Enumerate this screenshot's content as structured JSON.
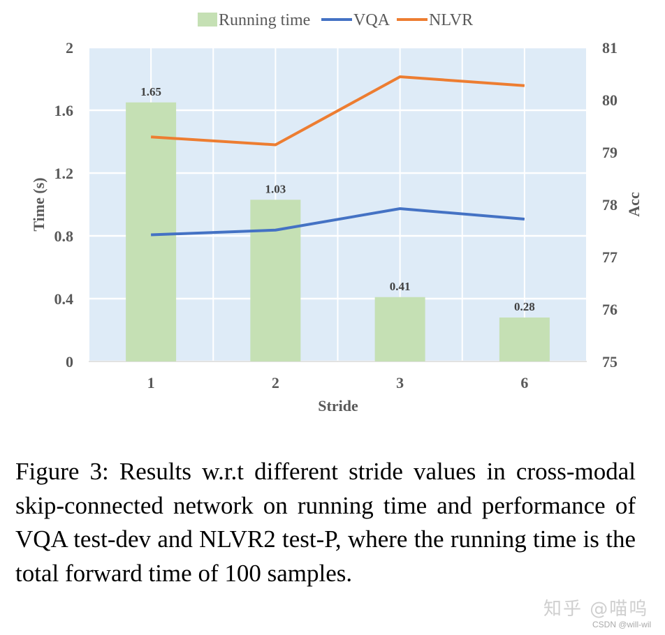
{
  "chart_data": {
    "type": "bar+line",
    "categories": [
      "1",
      "2",
      "3",
      "6"
    ],
    "xlabel": "Stride",
    "ylabel": "Time (s)",
    "y2label": "Acc",
    "ylim": [
      0,
      2
    ],
    "y_ticks": [
      "0",
      "0.4",
      "0.8",
      "1.2",
      "1.6",
      "2"
    ],
    "y2lim": [
      75,
      81
    ],
    "y2_ticks": [
      "75",
      "76",
      "77",
      "78",
      "79",
      "80",
      "81"
    ],
    "grid": true,
    "legend_position": "top",
    "series": [
      {
        "name": "Running time",
        "kind": "bar",
        "axis": "left",
        "values": [
          1.65,
          1.03,
          0.41,
          0.28
        ],
        "labels": [
          "1.65",
          "1.03",
          "0.41",
          "0.28"
        ],
        "color": "#c5e0b4"
      },
      {
        "name": "VQA",
        "kind": "line",
        "axis": "right",
        "values": [
          77.42,
          77.51,
          77.92,
          77.72
        ],
        "color": "#4472c4"
      },
      {
        "name": "NLVR",
        "kind": "line",
        "axis": "right",
        "values": [
          79.29,
          79.14,
          80.44,
          80.27
        ],
        "color": "#ed7d31"
      }
    ],
    "plot_background": "#deebf7"
  },
  "caption": "Figure 3: Results w.r.t different stride values in cross-modal skip-connected network on running time and performance of VQA test-dev and NLVR2 test-P, where the running time is the total forward time of 100 samples.",
  "watermark": {
    "main": "知乎 @喵呜",
    "sub": "CSDN @will-wil"
  }
}
